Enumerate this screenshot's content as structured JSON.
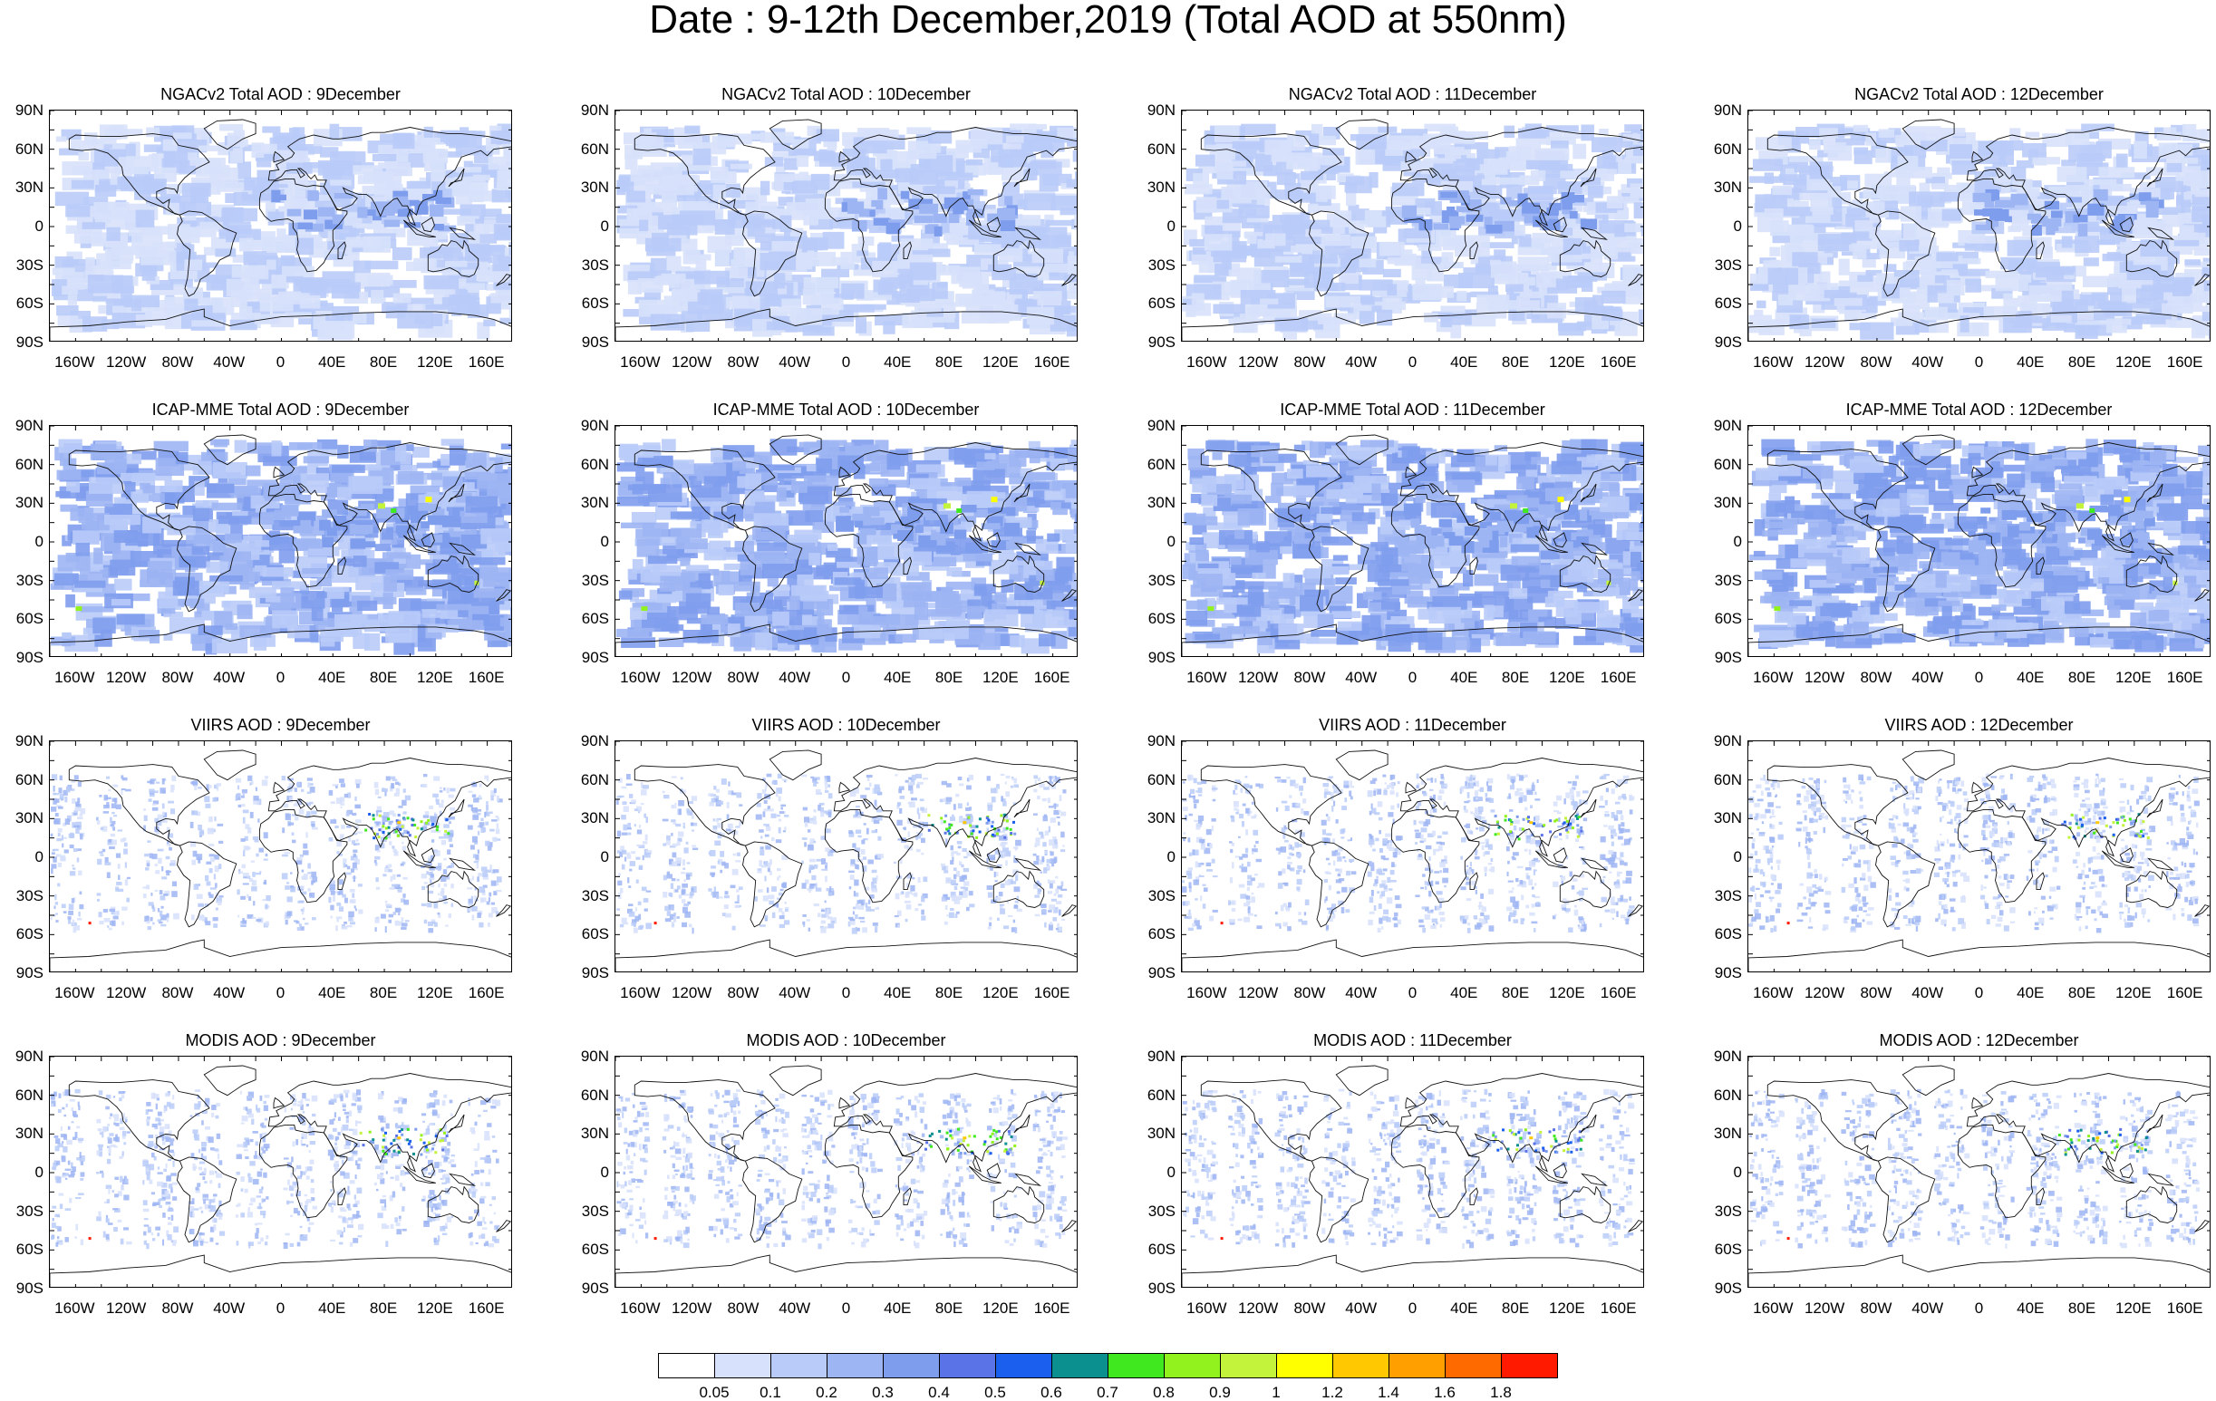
{
  "title": "Date : 9-12th December,2019 (Total AOD at 550nm)",
  "rows": [
    {
      "product": "NGACv2 Total AOD",
      "titles": [
        "NGACv2 Total AOD : 9December",
        "NGACv2 Total AOD : 10December",
        "NGACv2 Total AOD : 11December",
        "NGACv2 Total AOD : 12December"
      ]
    },
    {
      "product": "ICAP-MME Total AOD",
      "titles": [
        "ICAP-MME Total AOD : 9December",
        "ICAP-MME Total AOD : 10December",
        "ICAP-MME Total AOD : 11December",
        "ICAP-MME Total AOD : 12December"
      ]
    },
    {
      "product": "VIIRS AOD",
      "titles": [
        "VIIRS AOD : 9December",
        "VIIRS AOD : 10December",
        "VIIRS AOD : 11December",
        "VIIRS AOD : 12December"
      ]
    },
    {
      "product": "MODIS AOD",
      "titles": [
        "MODIS AOD : 9December",
        "MODIS AOD : 10December",
        "MODIS AOD : 11December",
        "MODIS AOD : 12December"
      ]
    }
  ],
  "lat_ticks": [
    "90N",
    "60N",
    "30N",
    "0",
    "30S",
    "60S",
    "90S"
  ],
  "lon_ticks": [
    "160W",
    "120W",
    "80W",
    "40W",
    "0",
    "40E",
    "80E",
    "120E",
    "160E"
  ],
  "colorbar": {
    "labels": [
      "0.05",
      "0.1",
      "0.2",
      "0.3",
      "0.4",
      "0.5",
      "0.6",
      "0.7",
      "0.8",
      "0.9",
      "1",
      "1.2",
      "1.4",
      "1.6",
      "1.8"
    ],
    "colors": [
      "#ffffff",
      "#d7e1fb",
      "#b9cbf8",
      "#9db5f3",
      "#7f9ded",
      "#5a73e6",
      "#1b5fef",
      "#0b8f8f",
      "#3fe81f",
      "#91f21d",
      "#c3f33a",
      "#ffff00",
      "#ffc800",
      "#ff9f00",
      "#ff6a00",
      "#ff1a00"
    ]
  }
}
